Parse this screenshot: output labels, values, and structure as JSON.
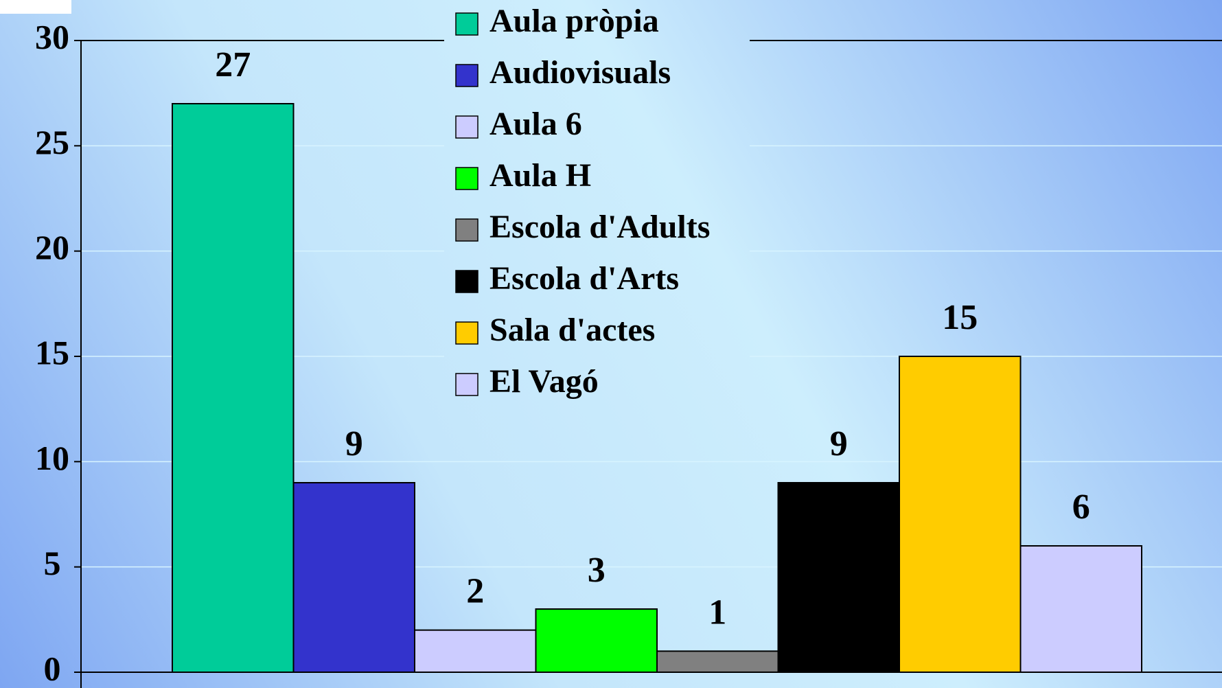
{
  "chart_data": {
    "type": "bar",
    "series": [
      {
        "name": "Aula pròpia",
        "color": "#00cc99",
        "values": [
          27
        ]
      },
      {
        "name": "Audiovisuals",
        "color": "#3333cc",
        "values": [
          9
        ]
      },
      {
        "name": "Aula 6",
        "color": "#ccccff",
        "values": [
          2
        ]
      },
      {
        "name": "Aula H",
        "color": "#00ff00",
        "values": [
          3
        ]
      },
      {
        "name": "Escola d'Adults",
        "color": "#808080",
        "values": [
          1
        ]
      },
      {
        "name": "Escola d'Arts",
        "color": "#000000",
        "values": [
          9
        ]
      },
      {
        "name": "Sala d'actes",
        "color": "#ffcc00",
        "values": [
          15
        ]
      },
      {
        "name": "El Vagó",
        "color": "#ccccff",
        "values": [
          6
        ]
      }
    ],
    "ylim": [
      0,
      30
    ],
    "yticks": [
      0,
      5,
      10,
      15,
      20,
      25,
      30
    ],
    "grid": true,
    "legend": "top"
  }
}
